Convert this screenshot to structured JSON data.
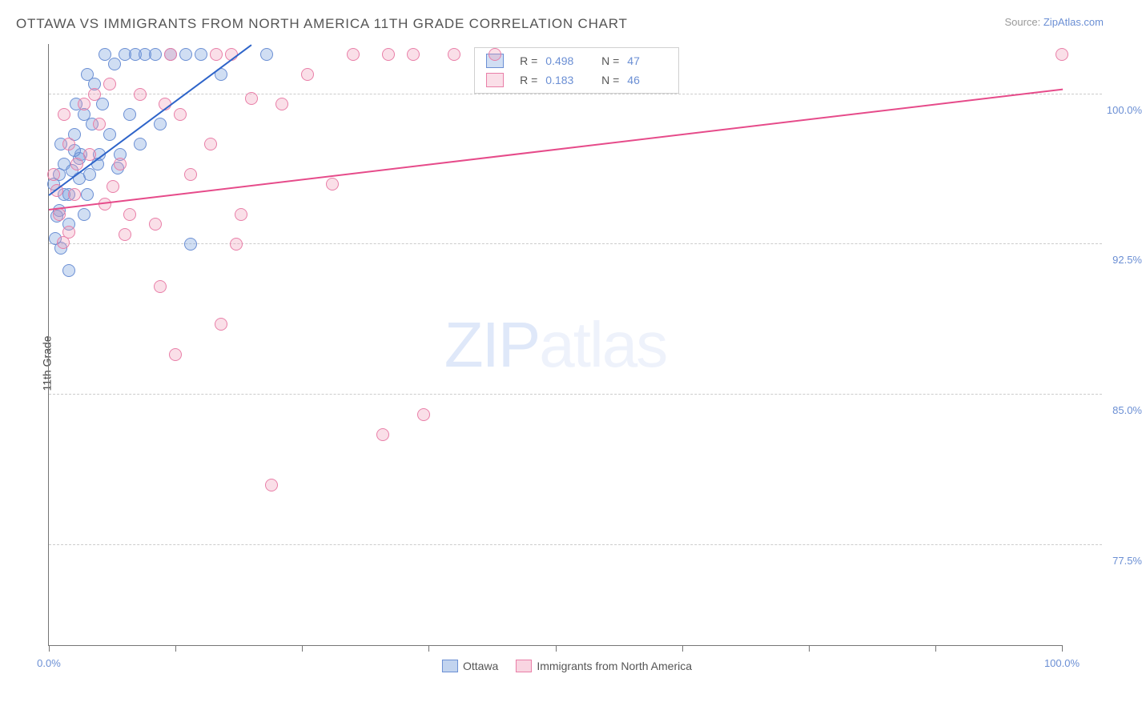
{
  "title": "OTTAWA VS IMMIGRANTS FROM NORTH AMERICA 11TH GRADE CORRELATION CHART",
  "source_prefix": "Source: ",
  "source_link": "ZipAtlas.com",
  "ylabel": "11th Grade",
  "watermark_a": "ZIP",
  "watermark_b": "atlas",
  "chart": {
    "type": "scatter",
    "xlim": [
      0,
      100
    ],
    "ylim": [
      72.5,
      102.5
    ],
    "y_gridlines": [
      {
        "value": 100.0,
        "label": "100.0%"
      },
      {
        "value": 92.5,
        "label": "92.5%"
      },
      {
        "value": 85.0,
        "label": "85.0%"
      },
      {
        "value": 77.5,
        "label": "77.5%"
      }
    ],
    "x_ticks": [
      0,
      12.5,
      25,
      37.5,
      50,
      62.5,
      75,
      87.5,
      100
    ],
    "x_labels": [
      {
        "value": 0,
        "text": "0.0%"
      },
      {
        "value": 100,
        "text": "100.0%"
      }
    ],
    "background_color": "#ffffff",
    "grid_color": "#cccccc",
    "axis_color": "#757575",
    "series": [
      {
        "name": "Ottawa",
        "color_fill": "rgba(120,160,220,0.35)",
        "color_stroke": "#6b8fd4",
        "trend_color": "#2e64c9",
        "marker_r": 8,
        "R": "0.498",
        "N": "47",
        "trend": {
          "x1": 0,
          "y1": 95.0,
          "x2": 20,
          "y2": 102.5
        },
        "points": [
          {
            "x": 0.5,
            "y": 95.5
          },
          {
            "x": 1.0,
            "y": 96.0
          },
          {
            "x": 1.5,
            "y": 96.5
          },
          {
            "x": 1.2,
            "y": 97.5
          },
          {
            "x": 2.0,
            "y": 95.0
          },
          {
            "x": 2.3,
            "y": 96.2
          },
          {
            "x": 2.5,
            "y": 98.0
          },
          {
            "x": 2.7,
            "y": 99.5
          },
          {
            "x": 3.0,
            "y": 95.8
          },
          {
            "x": 3.2,
            "y": 97.0
          },
          {
            "x": 3.5,
            "y": 99.0
          },
          {
            "x": 3.8,
            "y": 101.0
          },
          {
            "x": 4.0,
            "y": 96.0
          },
          {
            "x": 4.3,
            "y": 98.5
          },
          {
            "x": 4.5,
            "y": 100.5
          },
          {
            "x": 5.0,
            "y": 97.0
          },
          {
            "x": 5.3,
            "y": 99.5
          },
          {
            "x": 5.5,
            "y": 102.0
          },
          {
            "x": 6.0,
            "y": 98.0
          },
          {
            "x": 6.5,
            "y": 101.5
          },
          {
            "x": 7.0,
            "y": 97.0
          },
          {
            "x": 7.5,
            "y": 102.0
          },
          {
            "x": 8.0,
            "y": 99.0
          },
          {
            "x": 8.5,
            "y": 102.0
          },
          {
            "x": 9.5,
            "y": 102.0
          },
          {
            "x": 10.5,
            "y": 102.0
          },
          {
            "x": 11.0,
            "y": 98.5
          },
          {
            "x": 12.0,
            "y": 102.0
          },
          {
            "x": 13.5,
            "y": 102.0
          },
          {
            "x": 15.0,
            "y": 102.0
          },
          {
            "x": 17.0,
            "y": 101.0
          },
          {
            "x": 21.5,
            "y": 102.0
          },
          {
            "x": 1.0,
            "y": 94.2
          },
          {
            "x": 2.0,
            "y": 93.5
          },
          {
            "x": 0.8,
            "y": 93.9
          },
          {
            "x": 3.5,
            "y": 94.0
          },
          {
            "x": 1.5,
            "y": 95.0
          },
          {
            "x": 1.2,
            "y": 92.3
          },
          {
            "x": 0.6,
            "y": 92.8
          },
          {
            "x": 14.0,
            "y": 92.5
          },
          {
            "x": 2.0,
            "y": 91.2
          },
          {
            "x": 3.0,
            "y": 96.8
          },
          {
            "x": 4.8,
            "y": 96.5
          },
          {
            "x": 6.8,
            "y": 96.3
          },
          {
            "x": 2.5,
            "y": 97.2
          },
          {
            "x": 3.8,
            "y": 95.0
          },
          {
            "x": 9.0,
            "y": 97.5
          }
        ]
      },
      {
        "name": "Immigrants from North America",
        "color_fill": "rgba(240,150,180,0.30)",
        "color_stroke": "#e97fa8",
        "trend_color": "#e64b8a",
        "marker_r": 8,
        "R": "0.183",
        "N": "46",
        "trend": {
          "x1": 0,
          "y1": 94.3,
          "x2": 100,
          "y2": 100.3
        },
        "points": [
          {
            "x": 0.5,
            "y": 96.0
          },
          {
            "x": 1.5,
            "y": 99.0
          },
          {
            "x": 1.0,
            "y": 94.0
          },
          {
            "x": 2.0,
            "y": 97.5
          },
          {
            "x": 2.5,
            "y": 95.0
          },
          {
            "x": 3.5,
            "y": 99.5
          },
          {
            "x": 4.0,
            "y": 97.0
          },
          {
            "x": 5.0,
            "y": 98.5
          },
          {
            "x": 5.5,
            "y": 94.5
          },
          {
            "x": 6.0,
            "y": 100.5
          },
          {
            "x": 7.0,
            "y": 96.5
          },
          {
            "x": 8.0,
            "y": 94.0
          },
          {
            "x": 9.0,
            "y": 100.0
          },
          {
            "x": 10.5,
            "y": 93.5
          },
          {
            "x": 11.0,
            "y": 90.4
          },
          {
            "x": 12.0,
            "y": 102.0
          },
          {
            "x": 13.0,
            "y": 99.0
          },
          {
            "x": 14.0,
            "y": 96.0
          },
          {
            "x": 16.5,
            "y": 102.0
          },
          {
            "x": 18.0,
            "y": 102.0
          },
          {
            "x": 16.0,
            "y": 97.5
          },
          {
            "x": 18.5,
            "y": 92.5
          },
          {
            "x": 17.0,
            "y": 88.5
          },
          {
            "x": 19.0,
            "y": 94.0
          },
          {
            "x": 22.0,
            "y": 80.5
          },
          {
            "x": 25.5,
            "y": 101.0
          },
          {
            "x": 28.0,
            "y": 95.5
          },
          {
            "x": 30.0,
            "y": 102.0
          },
          {
            "x": 33.5,
            "y": 102.0
          },
          {
            "x": 33.0,
            "y": 83.0
          },
          {
            "x": 37.0,
            "y": 84.0
          },
          {
            "x": 36.0,
            "y": 102.0
          },
          {
            "x": 40.0,
            "y": 102.0
          },
          {
            "x": 44.0,
            "y": 102.0
          },
          {
            "x": 100.0,
            "y": 102.0
          },
          {
            "x": 12.5,
            "y": 87.0
          },
          {
            "x": 7.5,
            "y": 93.0
          },
          {
            "x": 2.8,
            "y": 96.5
          },
          {
            "x": 4.5,
            "y": 100.0
          },
          {
            "x": 0.8,
            "y": 95.2
          },
          {
            "x": 1.4,
            "y": 92.6
          },
          {
            "x": 11.5,
            "y": 99.5
          },
          {
            "x": 20.0,
            "y": 99.8
          },
          {
            "x": 23.0,
            "y": 99.5
          },
          {
            "x": 2.0,
            "y": 93.1
          },
          {
            "x": 6.3,
            "y": 95.4
          }
        ]
      }
    ]
  },
  "legend_bottom": [
    {
      "label": "Ottawa",
      "fill": "rgba(120,160,220,0.45)",
      "stroke": "#6b8fd4"
    },
    {
      "label": "Immigrants from North America",
      "fill": "rgba(240,150,180,0.40)",
      "stroke": "#e97fa8"
    }
  ]
}
